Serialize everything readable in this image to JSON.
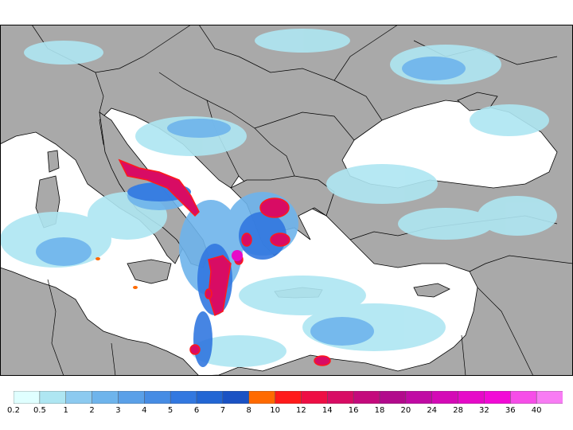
{
  "legend": {
    "labels": [
      "0.2",
      "0.5",
      "1",
      "2",
      "3",
      "4",
      "5",
      "6",
      "7",
      "8",
      "10",
      "12",
      "14",
      "16",
      "18",
      "20",
      "24",
      "28",
      "32",
      "36",
      "40"
    ],
    "colors": [
      "#e0ffff",
      "#aee6f2",
      "#8ccaf0",
      "#6eb4ec",
      "#5aa0e8",
      "#468ce4",
      "#3278e0",
      "#2266d4",
      "#1a52c4",
      "#ff6a00",
      "#ff1a1a",
      "#ee0e44",
      "#d80c64",
      "#c40a7c",
      "#b20a8c",
      "#c00aa4",
      "#d40ab6",
      "#e60ac8",
      "#f20ad6",
      "#f64ee8",
      "#f87cf4"
    ],
    "label_colors_note": ""
  },
  "map": {
    "land_color": "#a9a9a9",
    "sea_color": "#ffffff",
    "border_color": "#000000"
  }
}
